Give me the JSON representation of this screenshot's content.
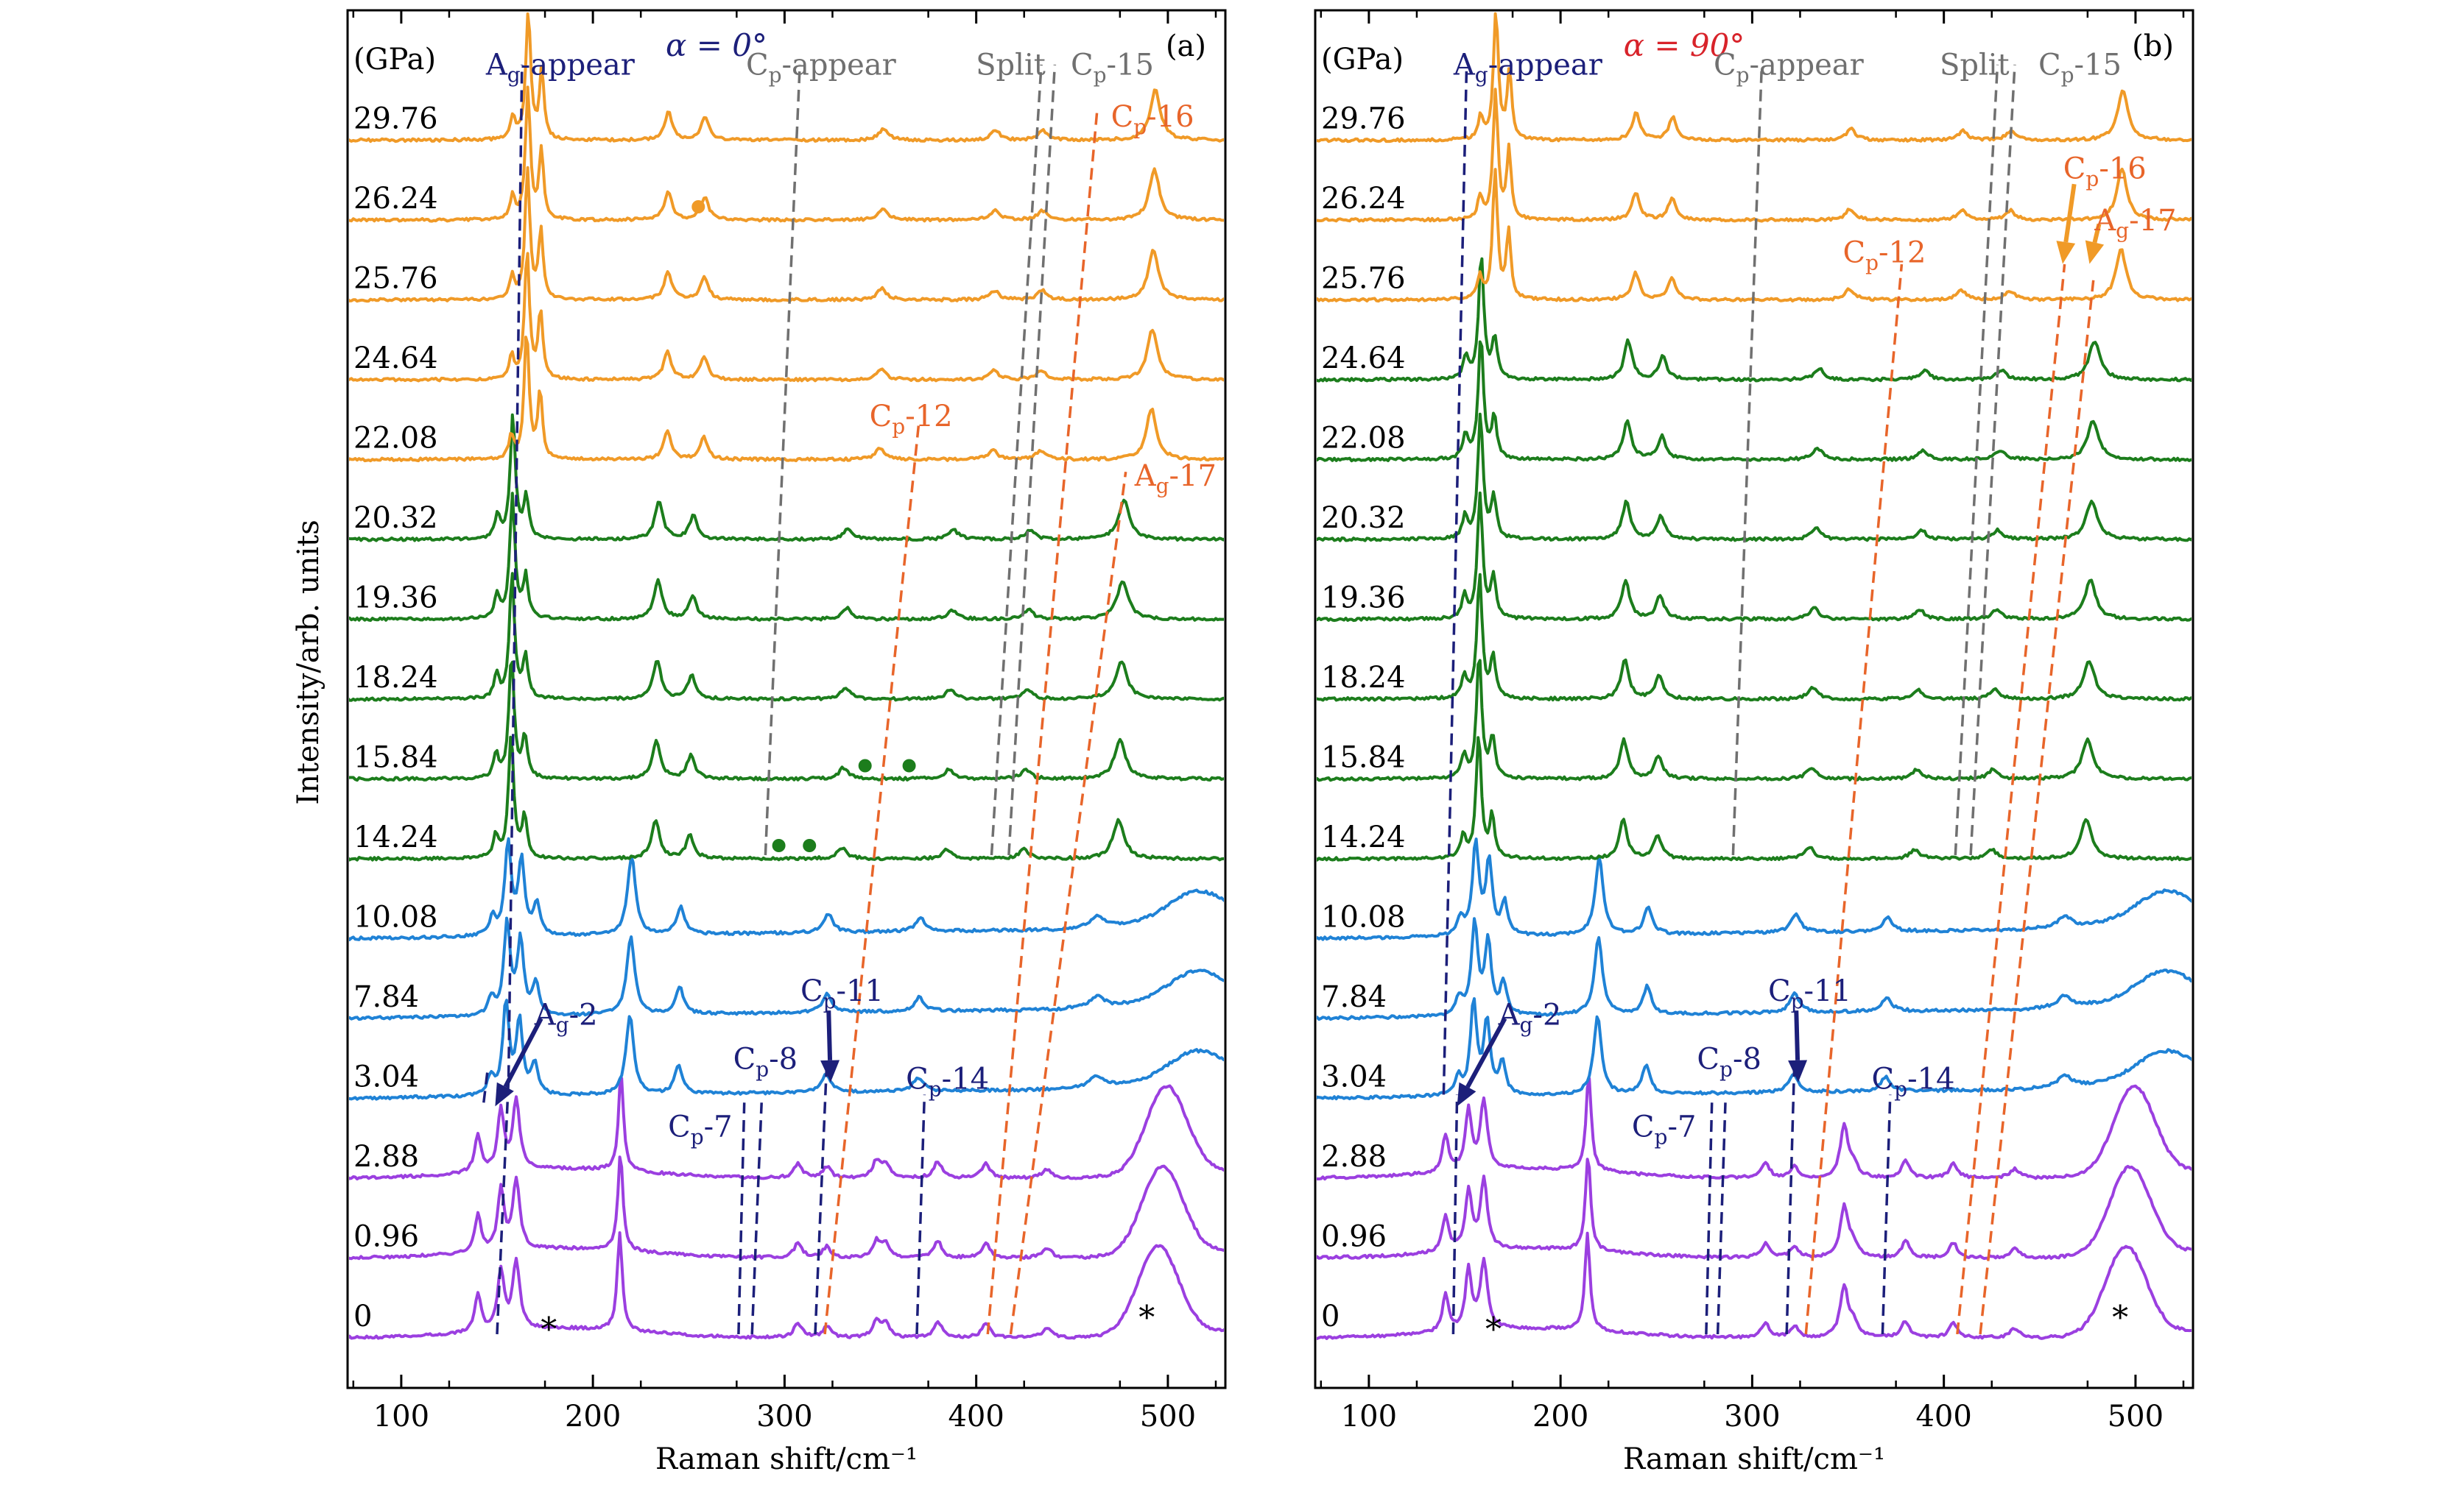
{
  "figure": {
    "ylabel": "Intensity/arb. units",
    "xlabel": "Raman shift/cm⁻¹",
    "unit_label": "(GPa)",
    "star": "*"
  },
  "palette": {
    "violet": "#9b3fe0",
    "blue": "#1f82d6",
    "green": "#1c7d1c",
    "orange": "#f09a27",
    "navy": "#1c1f7a",
    "gray": "#707070",
    "red_orange": "#e8652a",
    "axis": "#000000"
  },
  "chart_data": [
    {
      "type": "line",
      "panel": "(a)",
      "title": "α = 0°",
      "title_color": "#1c1f7a",
      "xlim": [
        72,
        530
      ],
      "xticks": [
        100,
        200,
        300,
        400,
        500
      ],
      "pressures": [
        "0",
        "0.96",
        "2.88",
        "3.04",
        "7.84",
        "10.08",
        "14.24",
        "15.84",
        "18.24",
        "19.36",
        "20.32",
        "22.08",
        "24.64",
        "25.76",
        "26.24",
        "29.76"
      ],
      "phase_color": [
        "violet",
        "violet",
        "violet",
        "blue",
        "blue",
        "blue",
        "green",
        "green",
        "green",
        "green",
        "green",
        "orange",
        "orange",
        "orange",
        "orange",
        "orange"
      ],
      "mode_lines": [
        {
          "color": "navy",
          "points": [
            [
              150,
              0
            ],
            [
              156,
              3.2
            ],
            [
              163,
              15.9
            ]
          ]
        },
        {
          "color": "navy",
          "points": [
            [
              143,
              2.9
            ],
            [
              145,
              3.3
            ]
          ]
        },
        {
          "color": "navy",
          "points": [
            [
              276,
              0
            ],
            [
              279,
              2.9
            ]
          ]
        },
        {
          "color": "navy",
          "points": [
            [
              283,
              0
            ],
            [
              288,
              2.9
            ]
          ]
        },
        {
          "color": "navy",
          "points": [
            [
              316,
              0
            ],
            [
              322,
              3.4
            ]
          ]
        },
        {
          "color": "navy",
          "points": [
            [
              369,
              0
            ],
            [
              373,
              3.0
            ]
          ]
        },
        {
          "color": "gray",
          "points": [
            [
              290,
              6
            ],
            [
              308,
              15.9
            ]
          ]
        },
        {
          "color": "gray",
          "points": [
            [
              408,
              6
            ],
            [
              434,
              15.9
            ]
          ]
        },
        {
          "color": "gray",
          "points": [
            [
              417,
              6
            ],
            [
              441,
              15.9
            ]
          ]
        },
        {
          "color": "red_orange",
          "points": [
            [
              321,
              0
            ],
            [
              370,
              11.4
            ]
          ]
        },
        {
          "color": "red_orange",
          "points": [
            [
              406,
              0
            ],
            [
              463,
              15.3
            ]
          ]
        },
        {
          "color": "red_orange",
          "points": [
            [
              418,
              0
            ],
            [
              478,
              10.8
            ]
          ]
        }
      ],
      "labels": [
        {
          "text": "Ag-appear",
          "color": "navy",
          "x": 183,
          "y": 15.95
        },
        {
          "text": "Cp-appear",
          "color": "gray",
          "x": 319,
          "y": 15.95
        },
        {
          "text": "Split",
          "color": "gray",
          "x": 418,
          "y": 15.95
        },
        {
          "text": "Cp-15",
          "color": "gray",
          "x": 471,
          "y": 15.95
        },
        {
          "text": "Cp-16",
          "color": "red_orange",
          "x": 492,
          "y": 15.3
        },
        {
          "text": "Cp-12",
          "color": "red_orange",
          "x": 366,
          "y": 11.55
        },
        {
          "text": "Ag-17",
          "color": "red_orange",
          "x": 504,
          "y": 10.8
        },
        {
          "text": "Ag-2",
          "color": "navy",
          "x": 186,
          "y": 4.05
        },
        {
          "text": "Cp-11",
          "color": "navy",
          "x": 330,
          "y": 4.35
        },
        {
          "text": "Cp-8",
          "color": "navy",
          "x": 290,
          "y": 3.5
        },
        {
          "text": "Cp-14",
          "color": "navy",
          "x": 385,
          "y": 3.25
        },
        {
          "text": "Cp-7",
          "color": "navy",
          "x": 256,
          "y": 2.65
        }
      ],
      "arrows": [
        {
          "color": "navy",
          "from": [
            173,
            4.0
          ],
          "to": [
            149,
            2.9
          ]
        },
        {
          "color": "navy",
          "from": [
            323,
            4.1
          ],
          "to": [
            324,
            3.2
          ]
        }
      ],
      "stars": [
        [
          177,
          0.15
        ],
        [
          489,
          0.3
        ]
      ],
      "dots": [
        {
          "color": "green",
          "x": 297,
          "level": 6
        },
        {
          "color": "green",
          "x": 313,
          "level": 6
        },
        {
          "color": "green",
          "x": 342,
          "level": 7
        },
        {
          "color": "green",
          "x": 365,
          "level": 7
        },
        {
          "color": "orange",
          "x": 255,
          "level": 14
        }
      ]
    },
    {
      "type": "line",
      "panel": "(b)",
      "title": "α = 90°",
      "title_color": "#d8232a",
      "xlim": [
        72,
        530
      ],
      "xticks": [
        100,
        200,
        300,
        400,
        500
      ],
      "pressures": [
        "0",
        "0.96",
        "2.88",
        "3.04",
        "7.84",
        "10.08",
        "14.24",
        "15.84",
        "18.24",
        "19.36",
        "20.32",
        "22.08",
        "24.64",
        "25.76",
        "26.24",
        "29.76"
      ],
      "phase_color": [
        "violet",
        "violet",
        "violet",
        "blue",
        "blue",
        "blue",
        "green",
        "green",
        "green",
        "green",
        "green",
        "green",
        "green",
        "orange",
        "orange",
        "orange"
      ],
      "mode_lines": [
        {
          "color": "navy",
          "points": [
            [
              139,
              3.0
            ],
            [
              151,
              15.9
            ]
          ]
        },
        {
          "color": "navy",
          "points": [
            [
              144,
              0
            ],
            [
              146,
              3.0
            ]
          ]
        },
        {
          "color": "navy",
          "points": [
            [
              276,
              0
            ],
            [
              279,
              2.9
            ]
          ]
        },
        {
          "color": "navy",
          "points": [
            [
              282,
              0
            ],
            [
              286,
              2.9
            ]
          ]
        },
        {
          "color": "navy",
          "points": [
            [
              318,
              0
            ],
            [
              322,
              3.4
            ]
          ]
        },
        {
          "color": "navy",
          "points": [
            [
              368,
              0
            ],
            [
              372,
              3.0
            ]
          ]
        },
        {
          "color": "gray",
          "points": [
            [
              290,
              6
            ],
            [
              305,
              15.9
            ]
          ]
        },
        {
          "color": "gray",
          "points": [
            [
              406,
              6
            ],
            [
              428,
              15.9
            ]
          ]
        },
        {
          "color": "gray",
          "points": [
            [
              414,
              6
            ],
            [
              437,
              15.9
            ]
          ]
        },
        {
          "color": "red_orange",
          "points": [
            [
              328,
              0
            ],
            [
              378,
              13.4
            ]
          ]
        },
        {
          "color": "red_orange",
          "points": [
            [
              407,
              0
            ],
            [
              463,
              13.4
            ]
          ]
        },
        {
          "color": "red_orange",
          "points": [
            [
              419,
              0
            ],
            [
              478,
              13.2
            ]
          ]
        }
      ],
      "labels": [
        {
          "text": "Ag-appear",
          "color": "navy",
          "x": 183,
          "y": 15.95
        },
        {
          "text": "Cp-appear",
          "color": "gray",
          "x": 319,
          "y": 15.95
        },
        {
          "text": "Split",
          "color": "gray",
          "x": 416,
          "y": 15.95
        },
        {
          "text": "Cp-15",
          "color": "gray",
          "x": 471,
          "y": 15.95
        },
        {
          "text": "Cp-16",
          "color": "red_orange",
          "x": 484,
          "y": 14.65
        },
        {
          "text": "Ag-17",
          "color": "red_orange",
          "x": 500,
          "y": 14.0
        },
        {
          "text": "Cp-12",
          "color": "red_orange",
          "x": 369,
          "y": 13.6
        },
        {
          "text": "Ag-2",
          "color": "navy",
          "x": 184,
          "y": 4.05
        },
        {
          "text": "Cp-11",
          "color": "navy",
          "x": 330,
          "y": 4.35
        },
        {
          "text": "Cp-8",
          "color": "navy",
          "x": 288,
          "y": 3.5
        },
        {
          "text": "Cp-14",
          "color": "navy",
          "x": 384,
          "y": 3.25
        },
        {
          "text": "Cp-7",
          "color": "navy",
          "x": 254,
          "y": 2.65
        }
      ],
      "arrows": [
        {
          "color": "navy",
          "from": [
            171,
            4.0
          ],
          "to": [
            146,
            2.9
          ]
        },
        {
          "color": "navy",
          "from": [
            323,
            4.1
          ],
          "to": [
            324,
            3.2
          ]
        },
        {
          "color": "orange",
          "from": [
            468,
            14.45
          ],
          "to": [
            462,
            13.45
          ]
        },
        {
          "color": "orange",
          "from": [
            481,
            13.95
          ],
          "to": [
            476,
            13.45
          ]
        }
      ],
      "stars": [
        [
          165,
          0.15
        ],
        [
          492,
          0.3
        ]
      ],
      "dots": []
    }
  ]
}
